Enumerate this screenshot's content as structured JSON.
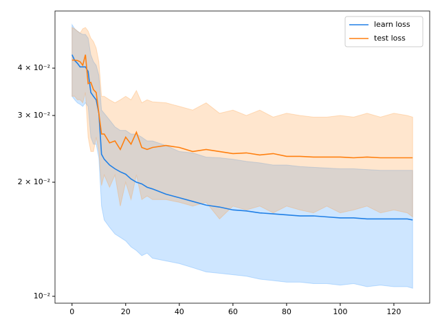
{
  "chart_data": {
    "type": "line",
    "yscale": "log",
    "legend": "upper right",
    "x": [
      0,
      1,
      2,
      3,
      4,
      5,
      6,
      7,
      8,
      9,
      10,
      11,
      12,
      14,
      16,
      18,
      20,
      22,
      24,
      26,
      28,
      30,
      35,
      40,
      45,
      50,
      55,
      60,
      65,
      70,
      75,
      80,
      85,
      90,
      95,
      100,
      105,
      110,
      115,
      120,
      125,
      127
    ],
    "xlim": [
      -6.35,
      133.35
    ],
    "xticks": [
      0,
      20,
      40,
      60,
      80,
      100,
      120
    ],
    "ylim": [
      0.00959,
      0.0566
    ],
    "yticks": [
      {
        "value": 0.01,
        "label": "10⁻²"
      },
      {
        "value": 0.02,
        "label": "2 × 10⁻²"
      },
      {
        "value": 0.03,
        "label": "3 × 10⁻²"
      },
      {
        "value": 0.04,
        "label": "4 × 10⁻²"
      }
    ],
    "series": [
      {
        "name": "learn loss",
        "color": "#1f7fe6",
        "band_color": "#3a9cff",
        "values": [
          0.0434,
          0.0419,
          0.0412,
          0.0403,
          0.0403,
          0.0403,
          0.0392,
          0.0345,
          0.0337,
          0.033,
          0.0304,
          0.0237,
          0.023,
          0.0222,
          0.0217,
          0.0213,
          0.021,
          0.0204,
          0.02,
          0.0198,
          0.0194,
          0.0192,
          0.0186,
          0.0182,
          0.0178,
          0.0174,
          0.0172,
          0.0169,
          0.0168,
          0.0166,
          0.0165,
          0.0164,
          0.0163,
          0.0163,
          0.0162,
          0.0161,
          0.0161,
          0.016,
          0.016,
          0.016,
          0.016,
          0.0159
        ],
        "lower": [
          0.0337,
          0.033,
          0.0324,
          0.0321,
          0.0317,
          0.0324,
          0.0317,
          0.0263,
          0.0252,
          0.0252,
          0.0232,
          0.0173,
          0.0159,
          0.0152,
          0.0146,
          0.0143,
          0.014,
          0.0135,
          0.0132,
          0.0128,
          0.013,
          0.0126,
          0.0124,
          0.0122,
          0.0119,
          0.0116,
          0.0115,
          0.0114,
          0.0113,
          0.0111,
          0.011,
          0.0109,
          0.0109,
          0.0108,
          0.0108,
          0.0107,
          0.0108,
          0.0106,
          0.0107,
          0.0106,
          0.0106,
          0.0105
        ],
        "upper": [
          0.0521,
          0.0508,
          0.0501,
          0.0495,
          0.0491,
          0.0491,
          0.048,
          0.0434,
          0.0416,
          0.0407,
          0.0383,
          0.031,
          0.0304,
          0.0292,
          0.028,
          0.0274,
          0.0274,
          0.0268,
          0.0268,
          0.0263,
          0.0257,
          0.0257,
          0.025,
          0.0241,
          0.0239,
          0.0233,
          0.0232,
          0.023,
          0.0227,
          0.0225,
          0.0222,
          0.0222,
          0.022,
          0.0219,
          0.0218,
          0.0217,
          0.0217,
          0.0216,
          0.0215,
          0.0215,
          0.0215,
          0.0215
        ]
      },
      {
        "name": "test loss",
        "color": "#ff7f0e",
        "band_color": "#ff9a3c",
        "values": [
          0.042,
          0.042,
          0.0419,
          0.0416,
          0.0407,
          0.0434,
          0.0364,
          0.0367,
          0.0351,
          0.0345,
          0.0304,
          0.0268,
          0.0268,
          0.0254,
          0.0257,
          0.0244,
          0.0263,
          0.0252,
          0.0271,
          0.0247,
          0.0244,
          0.0247,
          0.025,
          0.0247,
          0.0241,
          0.0244,
          0.0241,
          0.0238,
          0.0239,
          0.0236,
          0.0238,
          0.0234,
          0.0234,
          0.0233,
          0.0233,
          0.0233,
          0.0232,
          0.0233,
          0.0232,
          0.0232,
          0.0232,
          0.0232
        ],
        "lower": [
          0.0337,
          0.0337,
          0.033,
          0.033,
          0.0324,
          0.0345,
          0.0263,
          0.0241,
          0.0241,
          0.0263,
          0.0241,
          0.0196,
          0.0209,
          0.0194,
          0.0209,
          0.0173,
          0.02,
          0.018,
          0.0209,
          0.018,
          0.0184,
          0.018,
          0.018,
          0.0177,
          0.0173,
          0.0177,
          0.016,
          0.0173,
          0.0169,
          0.0173,
          0.0166,
          0.0173,
          0.0169,
          0.0166,
          0.0173,
          0.0166,
          0.0169,
          0.0173,
          0.0166,
          0.0169,
          0.0166,
          0.0162
        ],
        "upper": [
          0.0512,
          0.0508,
          0.0501,
          0.0495,
          0.0508,
          0.0512,
          0.0501,
          0.048,
          0.047,
          0.0452,
          0.0416,
          0.0337,
          0.0337,
          0.033,
          0.0324,
          0.033,
          0.0337,
          0.033,
          0.0349,
          0.0324,
          0.033,
          0.0326,
          0.0324,
          0.0317,
          0.031,
          0.0324,
          0.0304,
          0.031,
          0.03,
          0.031,
          0.0297,
          0.0304,
          0.03,
          0.0297,
          0.0297,
          0.03,
          0.0297,
          0.0304,
          0.0297,
          0.0304,
          0.03,
          0.0297
        ]
      }
    ]
  }
}
